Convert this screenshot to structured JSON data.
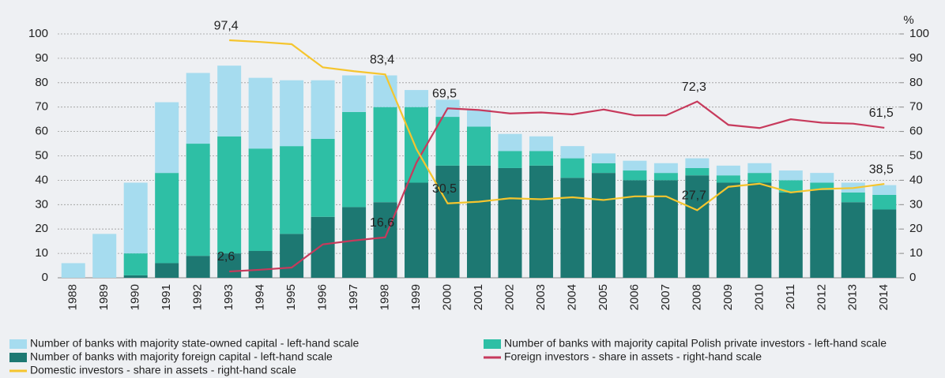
{
  "chart_data": {
    "type": "bar",
    "categories": [
      "1988",
      "1989",
      "1990",
      "1991",
      "1992",
      "1993",
      "1994",
      "1995",
      "1996",
      "1997",
      "1998",
      "1999",
      "2000",
      "2001",
      "2002",
      "2003",
      "2004",
      "2005",
      "2006",
      "2007",
      "2008",
      "2009",
      "2010",
      "2011",
      "2012",
      "2013",
      "2014"
    ],
    "ylim": [
      0,
      100
    ],
    "yticks": [
      0,
      10,
      20,
      30,
      40,
      50,
      60,
      70,
      80,
      90,
      100
    ],
    "y2lim": [
      0,
      100
    ],
    "y2ticks": [
      0,
      10,
      20,
      30,
      40,
      50,
      60,
      70,
      80,
      90,
      100
    ],
    "y2label": "%",
    "grid": true,
    "series": [
      {
        "name": "Number of banks with majority foreign capital - left-hand scale",
        "type": "bar",
        "axis": "y",
        "color": "#1d7872",
        "values": [
          0,
          0,
          1,
          6,
          9,
          10,
          11,
          18,
          25,
          29,
          31,
          39,
          46,
          46,
          45,
          46,
          41,
          43,
          40,
          40,
          42,
          39,
          39,
          35,
          36,
          31,
          28
        ]
      },
      {
        "name": "Number of banks with majority capital Polish private investors - left-hand scale",
        "type": "bar",
        "axis": "y",
        "color": "#2ebfa5",
        "values": [
          0,
          0,
          9,
          37,
          46,
          48,
          42,
          36,
          32,
          39,
          39,
          31,
          20,
          16,
          7,
          6,
          8,
          4,
          4,
          3,
          3,
          3,
          4,
          5,
          3,
          4,
          6
        ]
      },
      {
        "name": "Number of banks with majority state-owned capital - left-hand scale",
        "type": "bar",
        "axis": "y",
        "color": "#a6dcef",
        "values": [
          6,
          18,
          29,
          29,
          29,
          29,
          29,
          27,
          24,
          15,
          13,
          7,
          7,
          7,
          7,
          6,
          5,
          4,
          4,
          4,
          4,
          4,
          4,
          4,
          4,
          4,
          4
        ]
      },
      {
        "name": "Foreign investors - share in assets - right-hand scale",
        "type": "line",
        "axis": "y2",
        "color": "#c73a5c",
        "values": [
          null,
          null,
          null,
          null,
          null,
          2.6,
          3.3,
          4.2,
          13.7,
          15.3,
          16.6,
          47.2,
          69.5,
          68.8,
          67.4,
          67.8,
          67.0,
          69.0,
          66.6,
          66.6,
          72.3,
          62.7,
          61.4,
          65.0,
          63.6,
          63.2,
          61.5
        ],
        "value_labels": [
          null,
          null,
          null,
          null,
          null,
          "2,6",
          null,
          null,
          null,
          null,
          "16,6",
          null,
          "69,5",
          null,
          null,
          null,
          null,
          null,
          null,
          null,
          "72,3",
          null,
          null,
          null,
          null,
          null,
          "61,5"
        ]
      },
      {
        "name": "Domestic investors - share in assets - right-hand scale",
        "type": "line",
        "axis": "y2",
        "color": "#f5c52e",
        "values": [
          null,
          null,
          null,
          null,
          null,
          97.4,
          96.7,
          95.8,
          86.3,
          84.7,
          83.4,
          52.8,
          30.5,
          31.2,
          32.6,
          32.2,
          33.0,
          31.9,
          33.4,
          33.4,
          27.7,
          37.3,
          38.6,
          35.0,
          36.4,
          36.8,
          38.5
        ],
        "value_labels": [
          null,
          null,
          null,
          null,
          null,
          "97,4",
          null,
          null,
          null,
          null,
          "83,4",
          null,
          "30,5",
          null,
          null,
          null,
          null,
          null,
          null,
          null,
          "27,7",
          null,
          null,
          null,
          null,
          null,
          "38,5"
        ]
      }
    ]
  }
}
